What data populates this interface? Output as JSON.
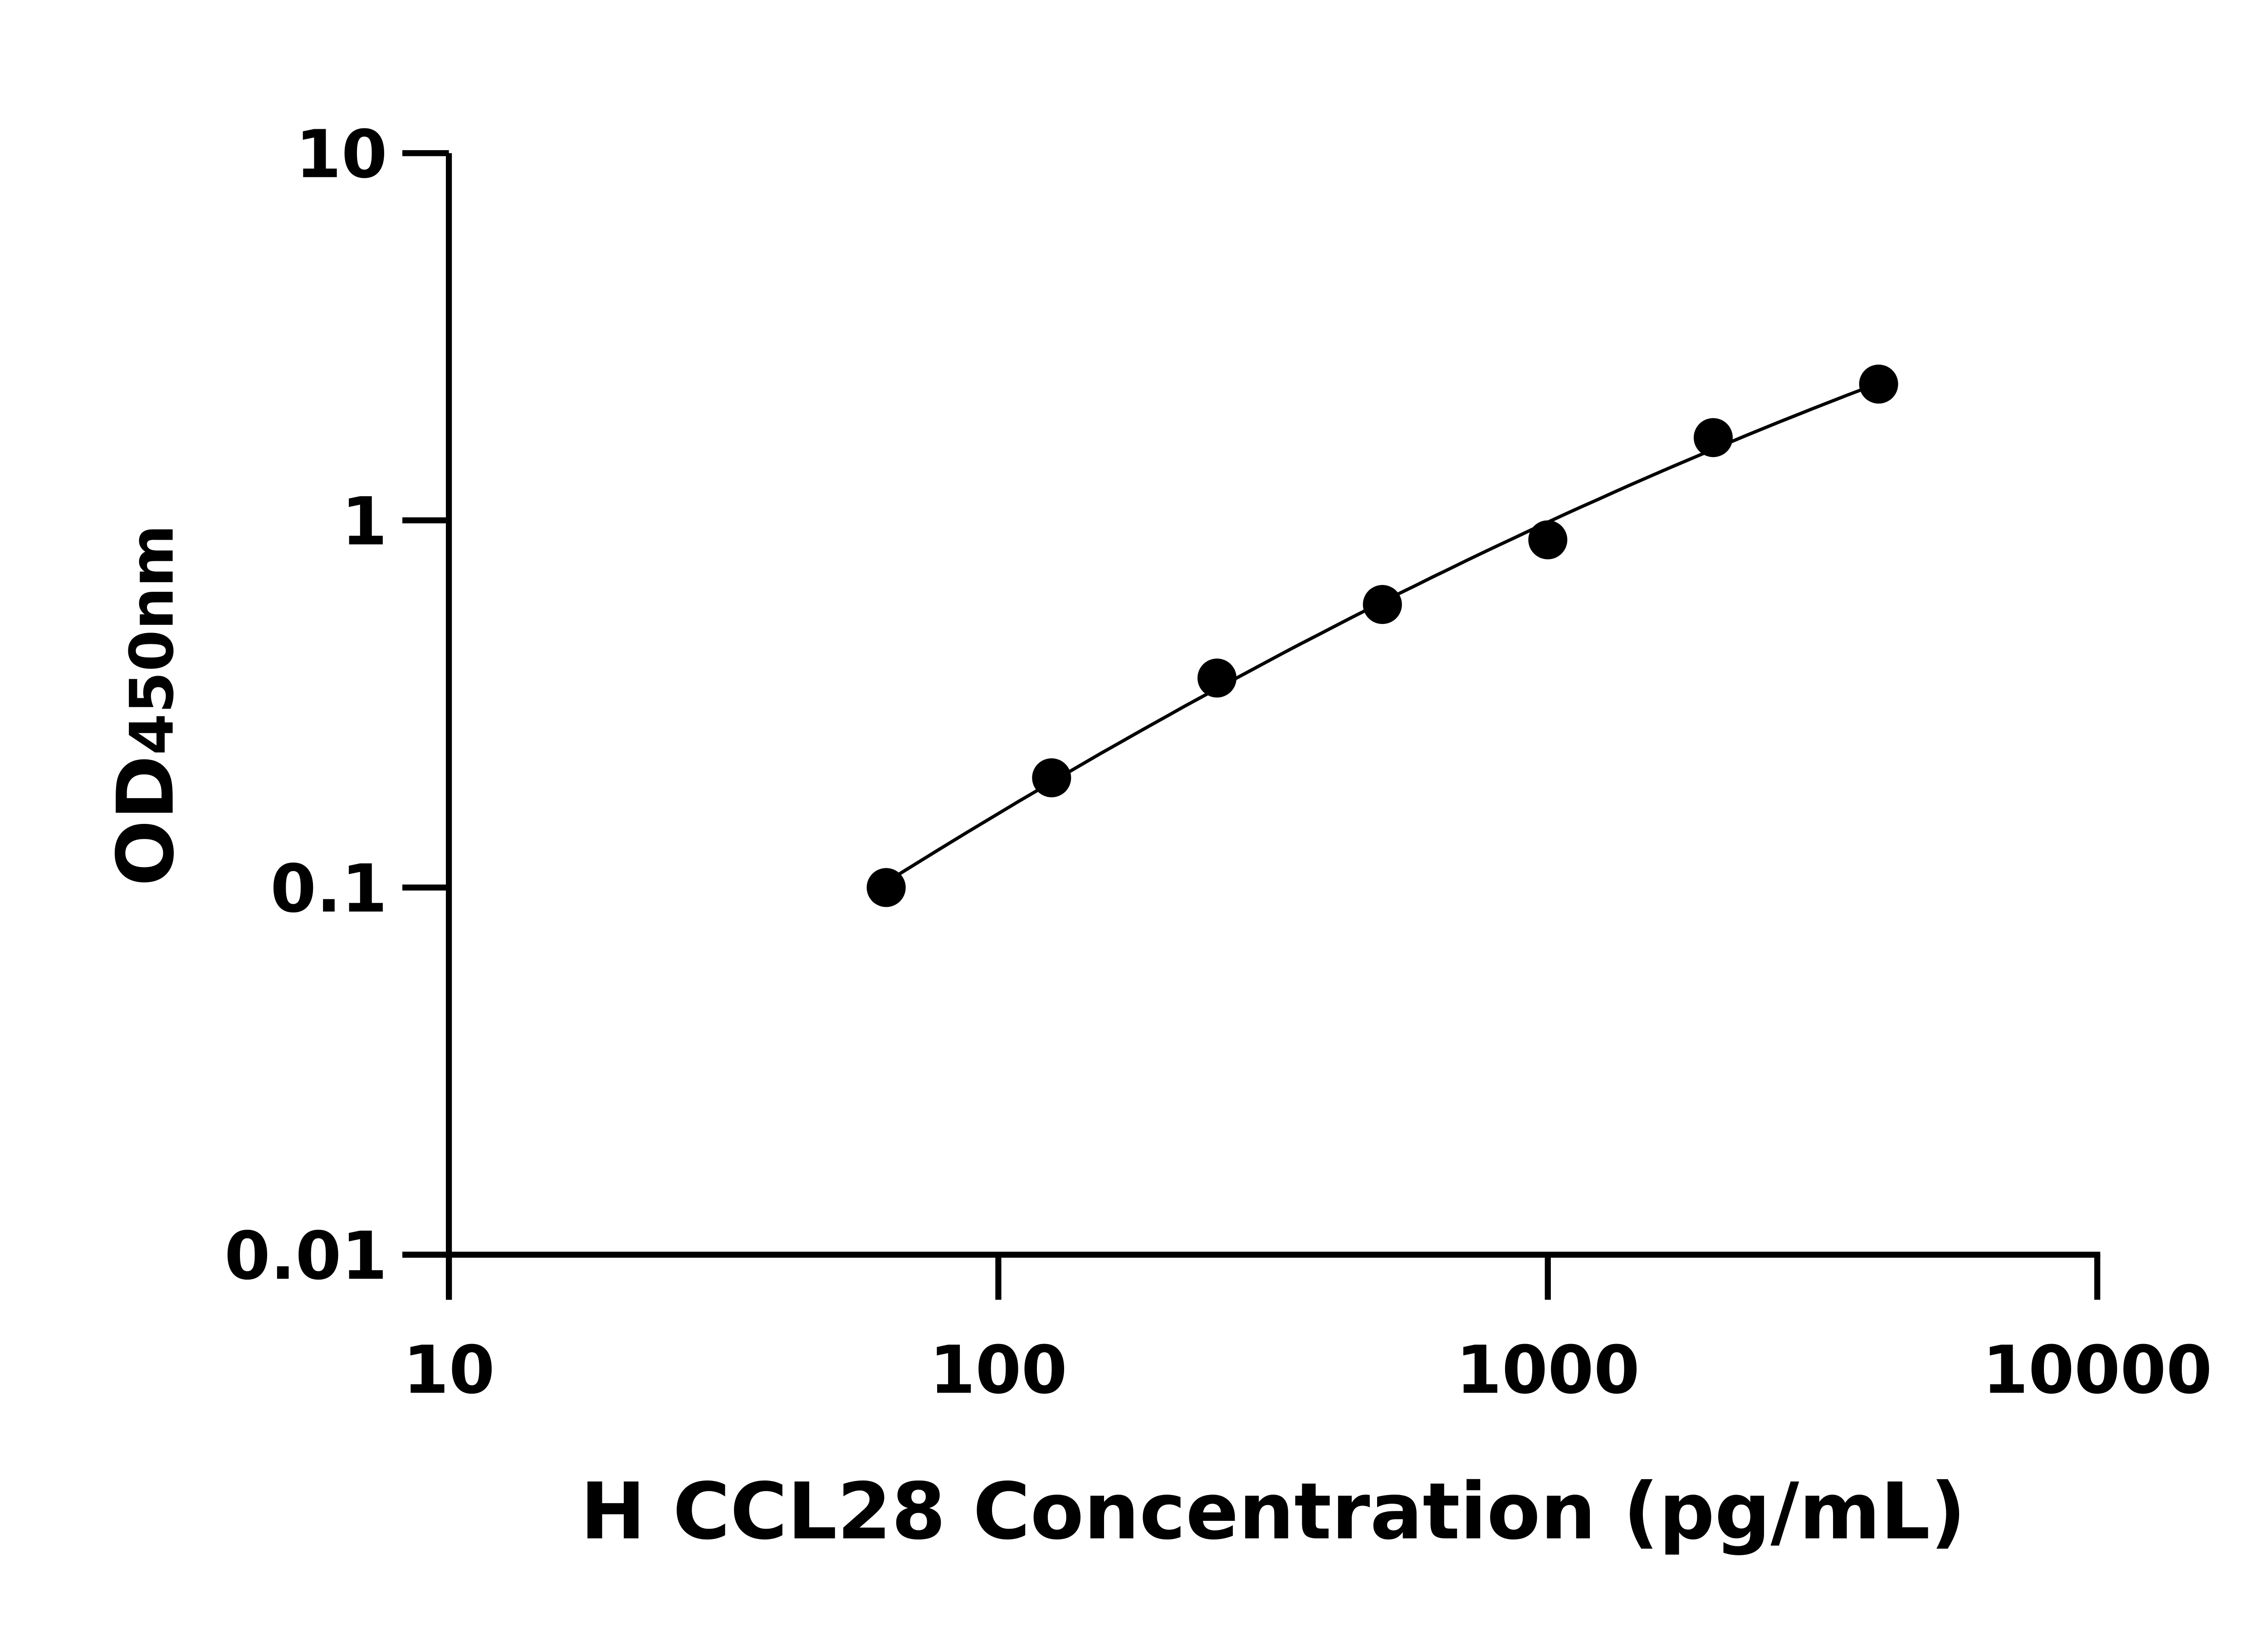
{
  "chart_data": {
    "type": "scatter",
    "title": "",
    "xlabel": "H CCL28 Concentration (pg/mL)",
    "ylabel_main": "OD",
    "ylabel_sub": "450nm",
    "x_scale": "log",
    "y_scale": "log",
    "xlim": [
      10,
      10000
    ],
    "ylim": [
      0.01,
      10
    ],
    "x_ticks": [
      "10",
      "100",
      "1000",
      "10000"
    ],
    "y_ticks": [
      "0.01",
      "0.1",
      "1",
      "10"
    ],
    "grid": false,
    "legend": "none",
    "fit_curve": true,
    "marker_color": "#000000",
    "line_color": "#000000",
    "points": [
      {
        "x": 62.5,
        "y": 0.1
      },
      {
        "x": 125,
        "y": 0.199
      },
      {
        "x": 250,
        "y": 0.372
      },
      {
        "x": 500,
        "y": 0.59
      },
      {
        "x": 1000,
        "y": 0.885
      },
      {
        "x": 2000,
        "y": 1.68
      },
      {
        "x": 4000,
        "y": 2.35
      }
    ]
  }
}
